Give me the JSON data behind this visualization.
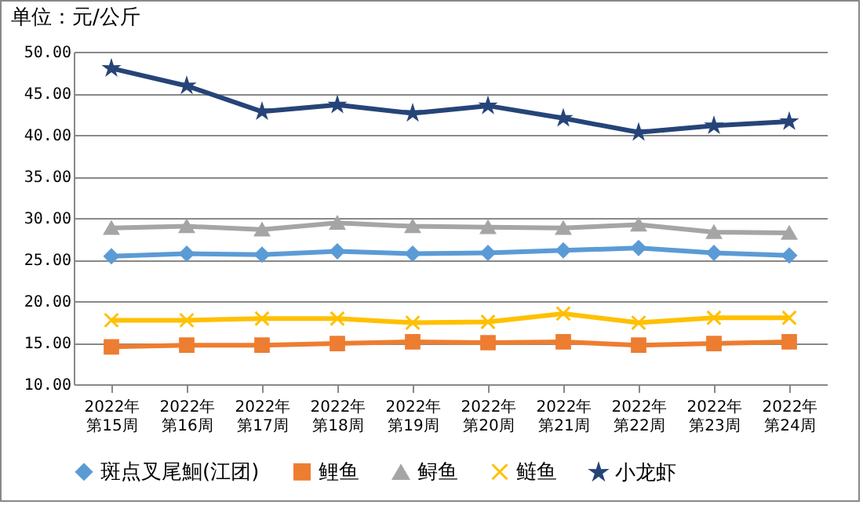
{
  "chart_data": {
    "type": "line",
    "title": "单位：元/公斤",
    "categories": [
      "2022年第15周",
      "2022年第16周",
      "2022年第17周",
      "2022年第18周",
      "2022年第19周",
      "2022年第20周",
      "2022年第21周",
      "2022年第22周",
      "2022年第23周",
      "2022年第24周"
    ],
    "series": [
      {
        "name": "斑点叉尾鮰(江团)",
        "color": "#5b9bd5",
        "marker": "diamond",
        "values": [
          25.4,
          25.7,
          25.6,
          26.0,
          25.7,
          25.8,
          26.1,
          26.4,
          25.8,
          25.5
        ]
      },
      {
        "name": "鲤鱼",
        "color": "#ed7d31",
        "marker": "square",
        "values": [
          14.5,
          14.7,
          14.7,
          14.9,
          15.1,
          15.0,
          15.1,
          14.7,
          14.9,
          15.1
        ]
      },
      {
        "name": "鲟鱼",
        "color": "#a5a5a5",
        "marker": "triangle",
        "values": [
          28.8,
          29.0,
          28.6,
          29.4,
          29.0,
          28.9,
          28.8,
          29.2,
          28.3,
          28.2
        ]
      },
      {
        "name": "鲢鱼",
        "color": "#ffc000",
        "marker": "cross",
        "values": [
          17.7,
          17.7,
          17.9,
          17.9,
          17.4,
          17.5,
          18.5,
          17.4,
          18.0,
          18.0
        ]
      },
      {
        "name": "小龙虾",
        "color": "#264478",
        "marker": "star",
        "values": [
          48.0,
          45.9,
          42.8,
          43.6,
          42.6,
          43.5,
          42.0,
          40.3,
          41.1,
          41.6
        ]
      }
    ],
    "ylim": [
      10,
      50
    ],
    "yticks": [
      {
        "value": 10,
        "label": "10.00"
      },
      {
        "value": 15,
        "label": "15.00"
      },
      {
        "value": 20,
        "label": "20.00"
      },
      {
        "value": 25,
        "label": "25.00"
      },
      {
        "value": 30,
        "label": "30.00"
      },
      {
        "value": 35,
        "label": "35.00"
      },
      {
        "value": 40,
        "label": "40.00"
      },
      {
        "value": 45,
        "label": "45.00"
      },
      {
        "value": 50,
        "label": "50.00"
      }
    ],
    "grid": "y",
    "legend": "bottom"
  }
}
